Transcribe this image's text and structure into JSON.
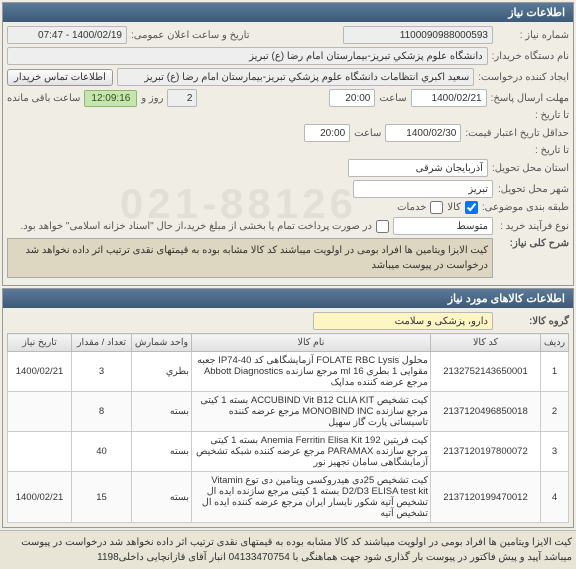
{
  "panel1": {
    "title": "اطلاعات نیاز",
    "need_no_label": "شماره نیاز :",
    "need_no": "1100090988000593",
    "announce_label": "تاریخ و ساعت اعلان عمومی:",
    "announce_val": "1400/02/19 - 07:47",
    "buyer_label": "نام دستگاه خریدار:",
    "buyer_val": "دانشگاه علوم پزشكي تبريز-بيمارستان امام رضا (ع) تبريز",
    "creator_label": "ایجاد کننده درخواست:",
    "creator_val": "سعيد اكبري انتظامات دانشگاه علوم پزشكي تبريز-بيمارستان امام رضا (ع) تبریز",
    "contact_btn": "اطلاعات تماس خریدار",
    "deadline_label": "مهلت ارسال پاسخ:",
    "deadline_date": "1400/02/21",
    "time_label1": "ساعت",
    "deadline_time": "20:00",
    "remain_day": "2",
    "day_label": "روز و",
    "remain_time": "12:09:16",
    "remain_label": "ساعت باقی مانده",
    "to_date_label": "تا تاریخ :",
    "validity_label": "حداقل تاریخ اعتبار قیمت:",
    "validity_date": "1400/02/30",
    "time_label2": "ساعت",
    "validity_time": "20:00",
    "to_date2_label": "تا تاریخ :",
    "province_label": "استان محل تحویل:",
    "province_val": "آذربایجان شرقی",
    "city_label": "شهر محل تحویل:",
    "city_val": "تبریز",
    "classify_label": "طبقه بندی موضوعی:",
    "goods_check": "کالا",
    "service_check": "خدمات",
    "purchase_label": "نوع فرآیند خرید :",
    "purchase_val": "متوسط",
    "note": "در صورت پرداخت تمام یا بخشی از مبلغ خرید،از حال \"اسناد خزانه اسلامی\" خواهد بود.",
    "topic_label": "شرح کلی نیاز:",
    "topic_text": "کیت الایزا ویتامین ها افراد بومی در اولویت میباشند کد کالا مشابه بوده به قیمتهای نقدی ترتیب اثر داده نخواهد شد درخواست در پیوست میباشد"
  },
  "panel2": {
    "title": "اطلاعات کالاهای مورد نیاز",
    "group_label": "گروه کالا:",
    "group_val": "دارو، پزشکی و سلامت",
    "cols": {
      "row": "ردیف",
      "code": "کد کالا",
      "name": "نام کالا",
      "unit": "واحد شمارش",
      "qty": "تعداد / مقدار",
      "date": "تاریخ نیاز"
    },
    "rows": [
      {
        "n": "1",
        "code": "2132752143650001",
        "name": "محلول FOLATE RBC Lysis آزمایشگاهی کد IP74-40 جعبه مقوایی 1 بطری 16 ml مرجع سازنده Abbott Diagnostics مرجع عرضه کننده مداپک",
        "unit": "بطري",
        "qty": "3",
        "date": "1400/02/21"
      },
      {
        "n": "2",
        "code": "2137120496850018",
        "name": "کیت تشخیص ACCUBIND Vit B12 CLIA KIT بسته 1 کیتی مرجع سازنده MONOBIND INC مرجع عرضه کننده تاسیساتی پارت گاز سهیل",
        "unit": "بسته",
        "qty": "8",
        "date": ""
      },
      {
        "n": "3",
        "code": "2137120197800072",
        "name": "کیت فریتین Anemia Ferritin Elisa Kit 192 بسته 1 کیتی مرجع سازنده PARAMAX مرجع عرضه کننده شبکه تشخیص آزمایشگاهی سامان تجهیز نور",
        "unit": "بسته",
        "qty": "40",
        "date": ""
      },
      {
        "n": "4",
        "code": "2137120199470012",
        "name": "کیت تشخیص 25دی هیدروکسی ویتامین دی توع Vitamin D2/D3 ELISA test kit بسته 1 کیتی مرجع سازنده ایده ال تشخیص آتیه شکور نایسار ایران مرجع عرضه کننده ایده ال تشخیص آتیه",
        "unit": "بسته",
        "qty": "15",
        "date": "1400/02/21"
      }
    ]
  },
  "footnote": "کیت الایزا ویتامین ها افراد بومی در اولویت میباشند کد کالا مشابه بوده به قیمتهای نقدی ترتیب اثر داده نخواهد شد درخواست در پیوست میباشد آپید و پیش فاکتور در پیوست بار گذاری شود جهت هماهنگی با 04133470754 انبار آقای قازانچایی داخلی1198"
}
